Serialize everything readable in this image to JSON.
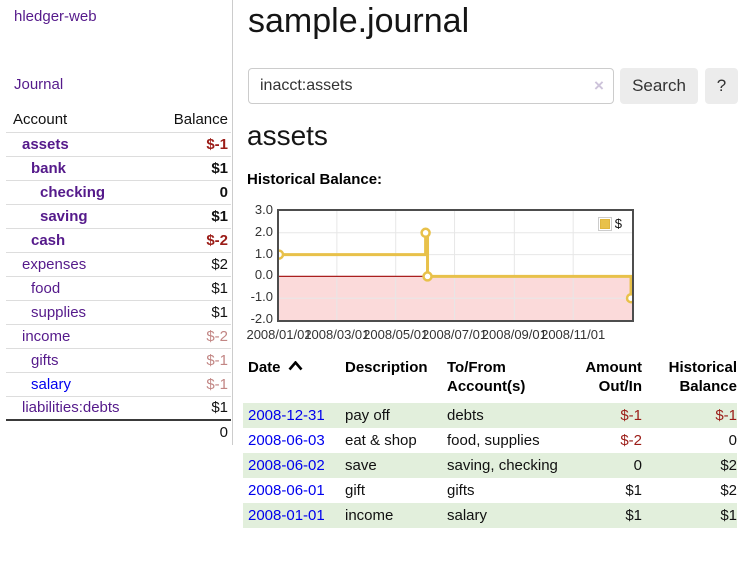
{
  "app": {
    "brand": "hledger-web",
    "nav_journal_label": "Journal"
  },
  "sidebar": {
    "headers": {
      "account": "Account",
      "balance": "Balance"
    },
    "accounts": [
      {
        "name": "assets",
        "balance": "$-1",
        "indent": 1,
        "bold": true,
        "name_color": "purple",
        "balance_color": "neg-dark"
      },
      {
        "name": "bank",
        "balance": "$1",
        "indent": 2,
        "bold": true,
        "name_color": "purple",
        "balance_color": "normal"
      },
      {
        "name": "checking",
        "balance": "0",
        "indent": 3,
        "bold": true,
        "name_color": "purple",
        "balance_color": "normal"
      },
      {
        "name": "saving",
        "balance": "$1",
        "indent": 3,
        "bold": true,
        "name_color": "purple",
        "balance_color": "normal"
      },
      {
        "name": "cash",
        "balance": "$-2",
        "indent": 2,
        "bold": true,
        "name_color": "purple",
        "balance_color": "neg-dark"
      },
      {
        "name": "expenses",
        "balance": "$2",
        "indent": 1,
        "bold": false,
        "name_color": "purple",
        "balance_color": "normal"
      },
      {
        "name": "food",
        "balance": "$1",
        "indent": 2,
        "bold": false,
        "name_color": "purple",
        "balance_color": "normal"
      },
      {
        "name": "supplies",
        "balance": "$1",
        "indent": 2,
        "bold": false,
        "name_color": "purple",
        "balance_color": "normal"
      },
      {
        "name": "income",
        "balance": "$-2",
        "indent": 1,
        "bold": false,
        "name_color": "purple",
        "balance_color": "neg-light"
      },
      {
        "name": "gifts",
        "balance": "$-1",
        "indent": 2,
        "bold": false,
        "name_color": "purple",
        "balance_color": "neg-light"
      },
      {
        "name": "salary",
        "balance": "$-1",
        "indent": 2,
        "bold": false,
        "name_color": "blue",
        "balance_color": "neg-light"
      },
      {
        "name": "liabilities:debts",
        "balance": "$1",
        "indent": 1,
        "bold": false,
        "name_color": "purple",
        "balance_color": "normal"
      }
    ],
    "total": "0"
  },
  "main": {
    "title": "sample.journal",
    "search": {
      "value": "inacct:assets",
      "clear_icon": "×",
      "button_label": "Search",
      "help_label": "?"
    },
    "account_heading": "assets",
    "chart_label": "Historical Balance:"
  },
  "chart_data": {
    "type": "line",
    "subtype": "step",
    "title": "Historical Balance",
    "legend": [
      {
        "label": "$",
        "color": "#e8c14a"
      }
    ],
    "legend_position": "top-right",
    "grid": true,
    "ylim": [
      -2.0,
      3.0
    ],
    "y_ticks": [
      3.0,
      2.0,
      1.0,
      0.0,
      -1.0,
      -2.0
    ],
    "x_axis_days_range": [
      0,
      366
    ],
    "x_ticks": [
      {
        "day": 0,
        "label": "2008/01/01"
      },
      {
        "day": 60,
        "label": "2008/03/01"
      },
      {
        "day": 121,
        "label": "2008/05/01"
      },
      {
        "day": 182,
        "label": "2008/07/01"
      },
      {
        "day": 244,
        "label": "2008/09/01"
      },
      {
        "day": 305,
        "label": "2008/11/01"
      }
    ],
    "series": [
      {
        "name": "$",
        "points": [
          {
            "date": "2008-01-01",
            "day": 0,
            "value": 1
          },
          {
            "date": "2008-06-01",
            "day": 152,
            "value": 2
          },
          {
            "date": "2008-06-03",
            "day": 154,
            "value": 0
          },
          {
            "date": "2008-12-31",
            "day": 365,
            "value": -1
          }
        ]
      }
    ],
    "colors": {
      "line": "#e8c14a",
      "marker_fill": "#ffffff",
      "negative_region": "#fbdada",
      "zero_line": "#aa1f1f",
      "gridline": "#e7e7e7",
      "border": "#4d4d4d"
    }
  },
  "register": {
    "headers": [
      {
        "label": "Date",
        "align": "left",
        "sorted": true
      },
      {
        "label": "Description",
        "align": "left",
        "sorted": false
      },
      {
        "label": "To/From Account(s)",
        "align": "left",
        "sorted": false
      },
      {
        "label": "Amount Out/In",
        "align": "right",
        "sorted": false
      },
      {
        "label": "Historical Balance",
        "align": "right",
        "sorted": false
      }
    ],
    "rows": [
      {
        "date": "2008-12-31",
        "description": "pay off",
        "accounts": "debts",
        "amount": "$-1",
        "amount_negative": true,
        "balance": "$-1",
        "balance_negative": true
      },
      {
        "date": "2008-06-03",
        "description": "eat & shop",
        "accounts": "food, supplies",
        "amount": "$-2",
        "amount_negative": true,
        "balance": "0",
        "balance_negative": false
      },
      {
        "date": "2008-06-02",
        "description": "save",
        "accounts": "saving, checking",
        "amount": "0",
        "amount_negative": false,
        "balance": "$2",
        "balance_negative": false
      },
      {
        "date": "2008-06-01",
        "description": "gift",
        "accounts": "gifts",
        "amount": "$1",
        "amount_negative": false,
        "balance": "$2",
        "balance_negative": false
      },
      {
        "date": "2008-01-01",
        "description": "income",
        "accounts": "salary",
        "amount": "$1",
        "amount_negative": false,
        "balance": "$1",
        "balance_negative": false
      }
    ]
  }
}
